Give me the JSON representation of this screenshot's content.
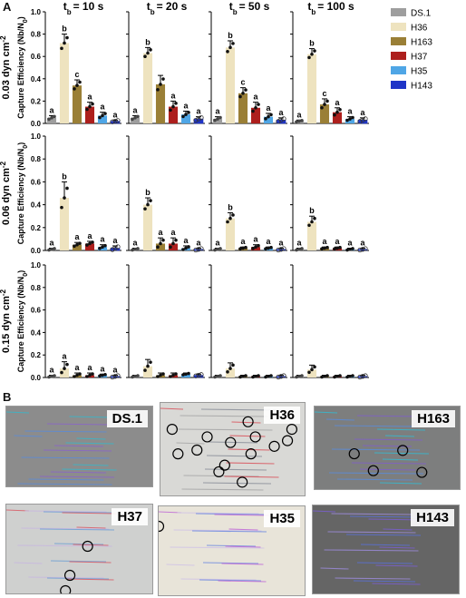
{
  "panel_a_label": "A",
  "panel_b_label": "B",
  "y_axis_label": "Capture Efficiency (Nb/N",
  "y_axis_label_sub": "0",
  "y_axis_label_end": ")",
  "legend": [
    {
      "name": "DS.1",
      "color": "#9e9e9e"
    },
    {
      "name": "H36",
      "color": "#eee3bf"
    },
    {
      "name": "H163",
      "color": "#9a7f36"
    },
    {
      "name": "H37",
      "color": "#ad1f1d"
    },
    {
      "name": "H35",
      "color": "#4fa6e6"
    },
    {
      "name": "H143",
      "color": "#1f35c7"
    }
  ],
  "chart_data": {
    "type": "bar",
    "categories": [
      "DS.1",
      "H36",
      "H163",
      "H37",
      "H35",
      "H143"
    ],
    "ylim": [
      0,
      1.0
    ],
    "y_ticks": [
      "0.0",
      "0.2",
      "0.4",
      "0.6",
      "0.8",
      "1.0"
    ],
    "columns": [
      {
        "label": "t",
        "label_sub": "b",
        "label_end": "= 10 s"
      },
      {
        "label": "t",
        "label_sub": "b",
        "label_end": "= 20 s"
      },
      {
        "label": "t",
        "label_sub": "b",
        "label_end": "= 50 s"
      },
      {
        "label": "t",
        "label_sub": "b",
        "label_end": "= 100 s"
      }
    ],
    "rows": [
      {
        "label": "0.03 dyn cm",
        "label_sup": "-2"
      },
      {
        "label": "0.06 dyn cm",
        "label_sup": "-2"
      },
      {
        "label": "0.15 dyn cm",
        "label_sup": "-2"
      }
    ],
    "panels": [
      {
        "row": 0,
        "col": 0,
        "values": [
          0.05,
          0.72,
          0.34,
          0.15,
          0.07,
          0.02
        ],
        "errors": [
          0.02,
          0.08,
          0.05,
          0.04,
          0.03,
          0.01
        ],
        "letters": [
          "a",
          "b",
          "c",
          "a",
          "a",
          "a"
        ]
      },
      {
        "row": 0,
        "col": 1,
        "values": [
          0.05,
          0.63,
          0.35,
          0.15,
          0.08,
          0.04
        ],
        "errors": [
          0.02,
          0.05,
          0.08,
          0.05,
          0.03,
          0.02
        ],
        "letters": [
          "a",
          "b",
          "",
          "a",
          "a",
          "a"
        ]
      },
      {
        "row": 0,
        "col": 2,
        "values": [
          0.04,
          0.68,
          0.27,
          0.14,
          0.06,
          0.03
        ],
        "errors": [
          0.02,
          0.06,
          0.05,
          0.05,
          0.03,
          0.02
        ],
        "letters": [
          "a",
          "b",
          "c",
          "a",
          "a",
          "a"
        ]
      },
      {
        "row": 0,
        "col": 3,
        "values": [
          0.02,
          0.62,
          0.17,
          0.1,
          0.04,
          0.03
        ],
        "errors": [
          0.01,
          0.05,
          0.05,
          0.04,
          0.02,
          0.02
        ],
        "letters": [
          "a",
          "b",
          "c",
          "a",
          "a",
          "a"
        ]
      },
      {
        "row": 1,
        "col": 0,
        "values": [
          0.01,
          0.46,
          0.05,
          0.06,
          0.03,
          0.02
        ],
        "errors": [
          0.01,
          0.14,
          0.02,
          0.02,
          0.02,
          0.02
        ],
        "letters": [
          "a",
          "b",
          "a",
          "a",
          "a",
          "a"
        ]
      },
      {
        "row": 1,
        "col": 1,
        "values": [
          0.01,
          0.4,
          0.06,
          0.06,
          0.02,
          0.01
        ],
        "errors": [
          0.01,
          0.06,
          0.05,
          0.05,
          0.02,
          0.01
        ],
        "letters": [
          "a",
          "b",
          "a",
          "a",
          "a",
          "a"
        ]
      },
      {
        "row": 1,
        "col": 2,
        "values": [
          0.01,
          0.28,
          0.02,
          0.03,
          0.02,
          0.01
        ],
        "errors": [
          0.01,
          0.05,
          0.01,
          0.02,
          0.01,
          0.01
        ],
        "letters": [
          "a",
          "b",
          "a",
          "a",
          "a",
          "a"
        ]
      },
      {
        "row": 1,
        "col": 3,
        "values": [
          0.01,
          0.25,
          0.02,
          0.02,
          0.01,
          0.01
        ],
        "errors": [
          0.01,
          0.05,
          0.01,
          0.01,
          0.01,
          0.01
        ],
        "letters": [
          "a",
          "b",
          "a",
          "a",
          "a",
          "a"
        ]
      },
      {
        "row": 2,
        "col": 0,
        "values": [
          0.01,
          0.08,
          0.02,
          0.02,
          0.02,
          0.01
        ],
        "errors": [
          0.01,
          0.06,
          0.02,
          0.02,
          0.01,
          0.01
        ],
        "letters": [
          "a",
          "a",
          "a",
          "a",
          "a",
          "a"
        ]
      },
      {
        "row": 2,
        "col": 1,
        "values": [
          0.01,
          0.1,
          0.02,
          0.02,
          0.03,
          0.02
        ],
        "errors": [
          0.01,
          0.06,
          0.02,
          0.02,
          0.01,
          0.01
        ],
        "letters": [
          "",
          "",
          "",
          "",
          "",
          ""
        ]
      },
      {
        "row": 2,
        "col": 2,
        "values": [
          0.01,
          0.08,
          0.01,
          0.01,
          0.01,
          0.01
        ],
        "errors": [
          0.01,
          0.05,
          0.01,
          0.01,
          0.01,
          0.01
        ],
        "letters": [
          "",
          "",
          "",
          "",
          "",
          ""
        ]
      },
      {
        "row": 2,
        "col": 3,
        "values": [
          0.01,
          0.07,
          0.01,
          0.01,
          0.01,
          0.01
        ],
        "errors": [
          0.01,
          0.04,
          0.01,
          0.01,
          0.01,
          0.01
        ],
        "letters": [
          "",
          "",
          "",
          "",
          "",
          ""
        ]
      }
    ]
  },
  "micrographs": [
    {
      "name": "DS.1",
      "bg": "#8c8c8c",
      "tone": "dark"
    },
    {
      "name": "H36",
      "bg": "#d9d9d6",
      "tone": "light"
    },
    {
      "name": "H163",
      "bg": "#7d7e7e",
      "tone": "dark"
    },
    {
      "name": "H37",
      "bg": "#cfd0cf",
      "tone": "light"
    },
    {
      "name": "H35",
      "bg": "#e8e4d9",
      "tone": "light"
    },
    {
      "name": "H143",
      "bg": "#656565",
      "tone": "dark"
    }
  ]
}
